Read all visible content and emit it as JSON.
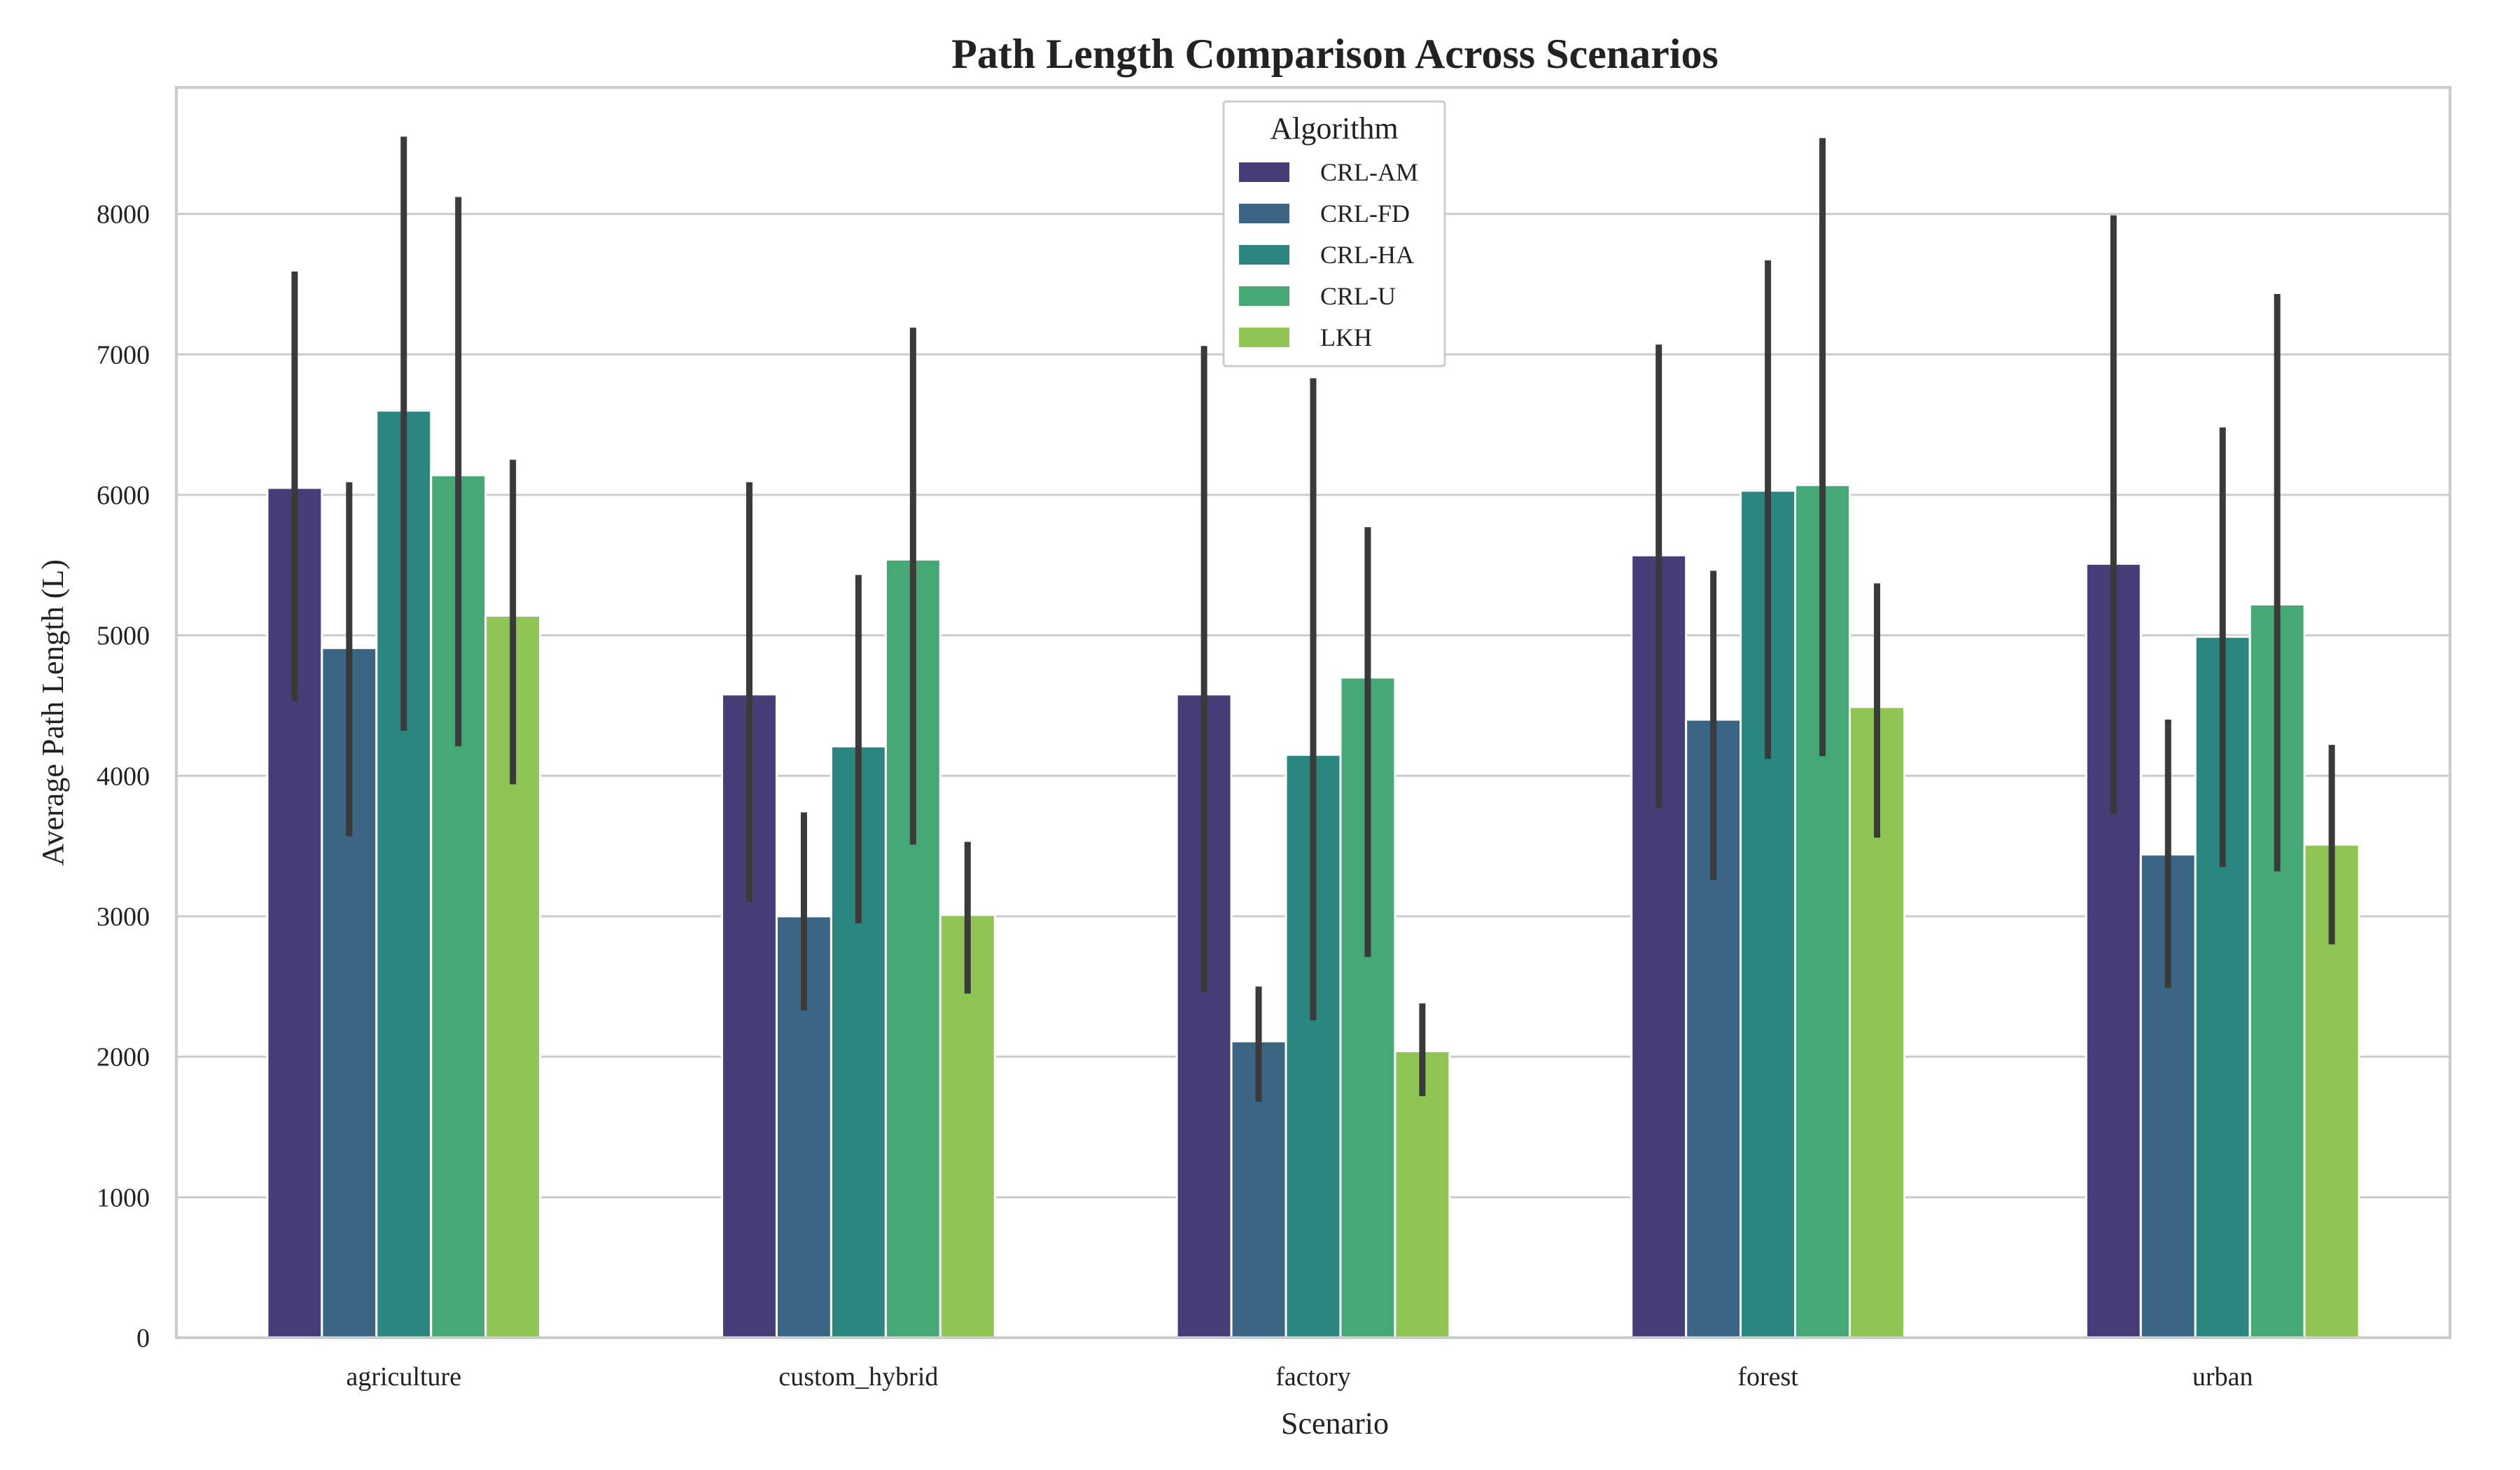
{
  "chart_data": {
    "type": "bar",
    "title": "Path Length Comparison Across Scenarios",
    "xlabel": "Scenario",
    "ylabel": "Average Path Length (L)",
    "ylim": [
      0,
      8900
    ],
    "yticks": [
      0,
      1000,
      2000,
      3000,
      4000,
      5000,
      6000,
      7000,
      8000
    ],
    "grid": true,
    "legend_title": "Algorithm",
    "legend_position": "top-center",
    "categories": [
      "agriculture",
      "custom_hybrid",
      "factory",
      "forest",
      "urban"
    ],
    "series": [
      {
        "name": "CRL-AM",
        "color": "#463e77",
        "values": [
          6050,
          4580,
          4580,
          5570,
          5510
        ],
        "error_low": [
          4530,
          3100,
          2460,
          3770,
          3730
        ],
        "error_high": [
          7590,
          6090,
          7060,
          7070,
          7990
        ]
      },
      {
        "name": "CRL-FD",
        "color": "#3b6584",
        "values": [
          4910,
          3000,
          2110,
          4400,
          3440
        ],
        "error_low": [
          3570,
          2330,
          1680,
          3260,
          2490
        ],
        "error_high": [
          6090,
          3740,
          2500,
          5460,
          4400
        ]
      },
      {
        "name": "CRL-HA",
        "color": "#2b8680",
        "values": [
          6600,
          4210,
          4150,
          6030,
          4990
        ],
        "error_low": [
          4320,
          2950,
          2260,
          4120,
          3350
        ],
        "error_high": [
          8550,
          5430,
          6830,
          7670,
          6480
        ]
      },
      {
        "name": "CRL-U",
        "color": "#46a875",
        "values": [
          6140,
          5540,
          4700,
          6070,
          5220
        ],
        "error_low": [
          4210,
          3510,
          2710,
          4140,
          3320
        ],
        "error_high": [
          8120,
          7190,
          5770,
          8540,
          7430
        ]
      },
      {
        "name": "LKH",
        "color": "#8ec554",
        "values": [
          5140,
          3010,
          2040,
          4490,
          3510
        ],
        "error_low": [
          3940,
          2450,
          1720,
          3560,
          2800
        ],
        "error_high": [
          6250,
          3530,
          2380,
          5370,
          4220
        ]
      }
    ]
  }
}
